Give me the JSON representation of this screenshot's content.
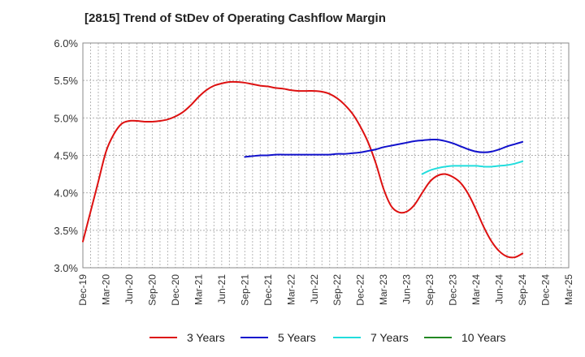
{
  "chart_data": {
    "type": "line",
    "title": "[2815]  Trend of StDev of Operating Cashflow Margin",
    "xlabel": "",
    "ylabel": "",
    "x_ticks": [
      "Dec-19",
      "Mar-20",
      "Jun-20",
      "Sep-20",
      "Dec-20",
      "Mar-21",
      "Jun-21",
      "Sep-21",
      "Dec-21",
      "Mar-22",
      "Jun-22",
      "Sep-22",
      "Dec-22",
      "Mar-23",
      "Jun-23",
      "Sep-23",
      "Dec-23",
      "Mar-24",
      "Jun-24",
      "Sep-24",
      "Dec-24",
      "Mar-25"
    ],
    "y_ticks": [
      "3.0%",
      "3.5%",
      "4.0%",
      "4.5%",
      "5.0%",
      "5.5%",
      "6.0%"
    ],
    "ylim": [
      3.0,
      6.0
    ],
    "grid": true,
    "legend_position": "bottom",
    "series": [
      {
        "name": "3 Years",
        "color": "#dd1111",
        "x": [
          "2019-12",
          "2020-01",
          "2020-02",
          "2020-03",
          "2020-04",
          "2020-05",
          "2020-06",
          "2020-07",
          "2020-08",
          "2020-09",
          "2020-10",
          "2020-11",
          "2020-12",
          "2021-01",
          "2021-02",
          "2021-03",
          "2021-04",
          "2021-05",
          "2021-06",
          "2021-07",
          "2021-08",
          "2021-09",
          "2021-10",
          "2021-11",
          "2021-12",
          "2022-01",
          "2022-02",
          "2022-03",
          "2022-04",
          "2022-05",
          "2022-06",
          "2022-07",
          "2022-08",
          "2022-09",
          "2022-10",
          "2022-11",
          "2022-12",
          "2023-01",
          "2023-02",
          "2023-03",
          "2023-04",
          "2023-05",
          "2023-06",
          "2023-07",
          "2023-08",
          "2023-09",
          "2023-10",
          "2023-11",
          "2023-12",
          "2024-01",
          "2024-02",
          "2024-03",
          "2024-04",
          "2024-05",
          "2024-06",
          "2024-07",
          "2024-08",
          "2024-09"
        ],
        "values": [
          3.35,
          3.75,
          4.15,
          4.55,
          4.78,
          4.92,
          4.96,
          4.96,
          4.95,
          4.95,
          4.96,
          4.98,
          5.02,
          5.08,
          5.17,
          5.28,
          5.37,
          5.43,
          5.46,
          5.48,
          5.48,
          5.47,
          5.45,
          5.43,
          5.42,
          5.4,
          5.39,
          5.37,
          5.36,
          5.36,
          5.36,
          5.35,
          5.32,
          5.26,
          5.17,
          5.05,
          4.88,
          4.67,
          4.39,
          4.05,
          3.82,
          3.74,
          3.75,
          3.84,
          4.0,
          4.15,
          4.23,
          4.25,
          4.21,
          4.13,
          3.98,
          3.77,
          3.54,
          3.35,
          3.22,
          3.15,
          3.14,
          3.19
        ]
      },
      {
        "name": "5 Years",
        "color": "#1111cc",
        "x": [
          "2021-09",
          "2021-10",
          "2021-11",
          "2021-12",
          "2022-01",
          "2022-02",
          "2022-03",
          "2022-04",
          "2022-05",
          "2022-06",
          "2022-07",
          "2022-08",
          "2022-09",
          "2022-10",
          "2022-11",
          "2022-12",
          "2023-01",
          "2023-02",
          "2023-03",
          "2023-04",
          "2023-05",
          "2023-06",
          "2023-07",
          "2023-08",
          "2023-09",
          "2023-10",
          "2023-11",
          "2023-12",
          "2024-01",
          "2024-02",
          "2024-03",
          "2024-04",
          "2024-05",
          "2024-06",
          "2024-07",
          "2024-08",
          "2024-09"
        ],
        "values": [
          4.48,
          4.49,
          4.5,
          4.5,
          4.51,
          4.51,
          4.51,
          4.51,
          4.51,
          4.51,
          4.51,
          4.51,
          4.52,
          4.52,
          4.53,
          4.54,
          4.56,
          4.58,
          4.61,
          4.63,
          4.65,
          4.67,
          4.69,
          4.7,
          4.71,
          4.71,
          4.69,
          4.66,
          4.62,
          4.58,
          4.55,
          4.54,
          4.55,
          4.58,
          4.62,
          4.65,
          4.68
        ]
      },
      {
        "name": "7 Years",
        "color": "#22dddd",
        "x": [
          "2023-08",
          "2023-09",
          "2023-10",
          "2023-11",
          "2023-12",
          "2024-01",
          "2024-02",
          "2024-03",
          "2024-04",
          "2024-05",
          "2024-06",
          "2024-07",
          "2024-08",
          "2024-09"
        ],
        "values": [
          4.25,
          4.3,
          4.33,
          4.35,
          4.36,
          4.36,
          4.36,
          4.36,
          4.35,
          4.35,
          4.36,
          4.37,
          4.39,
          4.42
        ]
      },
      {
        "name": "10 Years",
        "color": "#228822",
        "x": [],
        "values": []
      }
    ]
  }
}
